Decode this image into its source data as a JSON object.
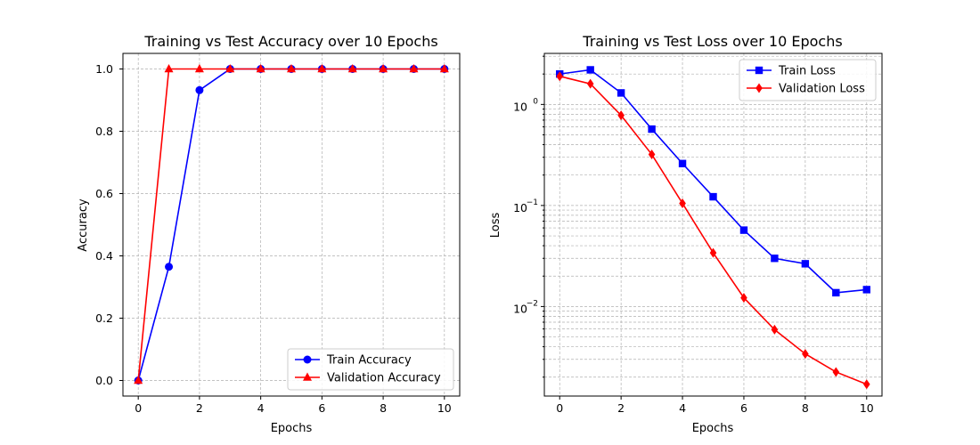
{
  "chart_data": [
    {
      "type": "line",
      "title": "Training vs Test Accuracy over 10 Epochs",
      "xlabel": "Epochs",
      "ylabel": "Accuracy",
      "x": [
        0,
        1,
        2,
        3,
        4,
        5,
        6,
        7,
        8,
        9,
        10
      ],
      "xlim": [
        -0.5,
        10.5
      ],
      "ylim": [
        -0.05,
        1.05
      ],
      "yscale": "linear",
      "x_ticks": [
        0,
        2,
        4,
        6,
        8,
        10
      ],
      "x_tick_labels": [
        "0",
        "2",
        "4",
        "6",
        "8",
        "10"
      ],
      "y_ticks": [
        0.0,
        0.2,
        0.4,
        0.6,
        0.8,
        1.0
      ],
      "y_tick_labels": [
        "0.0",
        "0.2",
        "0.4",
        "0.6",
        "0.8",
        "1.0"
      ],
      "grid": true,
      "legend_position": "lower-right",
      "series": [
        {
          "name": "Train Accuracy",
          "color": "#0000ff",
          "marker": "circle",
          "values": [
            0.0,
            0.365,
            0.932,
            1.0,
            1.0,
            1.0,
            1.0,
            1.0,
            1.0,
            1.0,
            1.0
          ]
        },
        {
          "name": "Validation Accuracy",
          "color": "#ff0000",
          "marker": "triangle",
          "values": [
            0.0,
            1.0,
            1.0,
            1.0,
            1.0,
            1.0,
            1.0,
            1.0,
            1.0,
            1.0,
            1.0
          ]
        }
      ]
    },
    {
      "type": "line",
      "title": "Training vs Test Loss over 10 Epochs",
      "xlabel": "Epochs",
      "ylabel": "Loss",
      "x": [
        0,
        1,
        2,
        3,
        4,
        5,
        6,
        7,
        8,
        9,
        10
      ],
      "xlim": [
        -0.5,
        10.5
      ],
      "ylim": [
        0.0013,
        3.2
      ],
      "yscale": "log",
      "x_ticks": [
        0,
        2,
        4,
        6,
        8,
        10
      ],
      "x_tick_labels": [
        "0",
        "2",
        "4",
        "6",
        "8",
        "10"
      ],
      "y_ticks": [
        0.01,
        0.1,
        1
      ],
      "y_tick_labels": [
        "10",
        "10",
        "10"
      ],
      "y_tick_exponents": [
        "−2",
        "−1",
        "0"
      ],
      "grid": true,
      "legend_position": "top-right",
      "series": [
        {
          "name": "Train Loss",
          "color": "#0000ff",
          "marker": "square",
          "values": [
            2.0,
            2.2,
            1.3,
            0.57,
            0.26,
            0.122,
            0.057,
            0.03,
            0.0265,
            0.0137,
            0.0147
          ]
        },
        {
          "name": "Validation Loss",
          "color": "#ff0000",
          "marker": "diamond",
          "values": [
            1.9,
            1.6,
            0.78,
            0.32,
            0.105,
            0.034,
            0.0122,
            0.0059,
            0.0034,
            0.00225,
            0.0017
          ]
        }
      ]
    }
  ]
}
